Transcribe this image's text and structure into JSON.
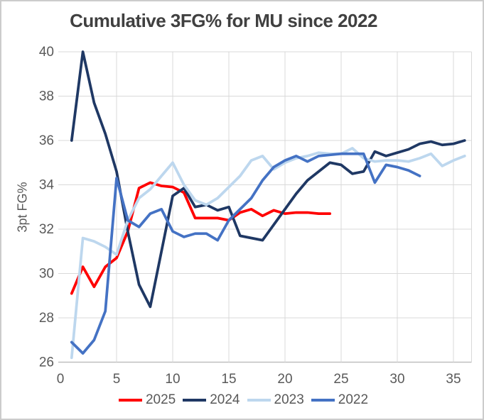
{
  "chart": {
    "title": "Cumulative 3FG% for MU since 2022",
    "y_axis_title": "3pt FG%"
  },
  "chart_data": {
    "type": "line",
    "title": "Cumulative 3FG% for MU since 2022",
    "xlabel": "",
    "ylabel": "3pt FG%",
    "x_start": 1,
    "xlim": [
      0,
      36.6
    ],
    "ylim": [
      26,
      40
    ],
    "x_ticks": [
      0,
      5,
      10,
      15,
      20,
      25,
      30,
      35
    ],
    "y_ticks": [
      26,
      28,
      30,
      32,
      34,
      36,
      38,
      40
    ],
    "grid": "both",
    "legend_position": "bottom",
    "colors": {
      "gridline": "#d9d9d9",
      "axis_line": "#bfbfbf",
      "tick_text": "#595959",
      "title_text": "#404040"
    },
    "series": [
      {
        "name": "2025",
        "color": "#ff0000",
        "values": [
          29.1,
          30.3,
          29.4,
          30.3,
          30.7,
          31.9,
          33.85,
          34.1,
          33.95,
          33.9,
          33.65,
          32.5,
          32.5,
          32.5,
          32.4,
          32.75,
          32.9,
          32.6,
          32.85,
          32.7,
          32.75,
          32.75,
          32.7,
          32.7
        ]
      },
      {
        "name": "2024",
        "color": "#1f3864",
        "values": [
          36.0,
          40.0,
          37.7,
          36.3,
          34.6,
          31.9,
          29.5,
          28.5,
          31.0,
          33.5,
          33.85,
          33.0,
          33.1,
          32.85,
          33.0,
          31.7,
          31.6,
          31.5,
          32.2,
          32.9,
          33.6,
          34.2,
          34.6,
          35.0,
          34.9,
          34.5,
          34.6,
          35.5,
          35.3,
          35.45,
          35.6,
          35.85,
          35.95,
          35.8,
          35.85,
          36.0
        ]
      },
      {
        "name": "2023",
        "color": "#bdd7ee",
        "values": [
          26.2,
          31.6,
          31.45,
          31.2,
          30.85,
          32.4,
          33.4,
          33.8,
          34.4,
          35.0,
          34.0,
          33.3,
          33.1,
          33.4,
          33.9,
          34.4,
          35.1,
          35.3,
          34.7,
          35.0,
          35.2,
          35.3,
          35.45,
          35.4,
          35.4,
          35.65,
          35.2,
          35.05,
          35.1,
          35.1,
          35.05,
          35.2,
          35.4,
          34.85,
          35.1,
          35.3
        ]
      },
      {
        "name": "2022",
        "color": "#4472c4",
        "values": [
          26.9,
          26.4,
          27.0,
          28.3,
          34.3,
          32.4,
          32.1,
          32.7,
          32.9,
          31.9,
          31.65,
          31.8,
          31.8,
          31.5,
          32.4,
          32.9,
          33.4,
          34.2,
          34.8,
          35.1,
          35.3,
          35.05,
          35.3,
          35.35,
          35.4,
          35.4,
          35.4,
          34.1,
          34.9,
          34.8,
          34.65,
          34.4
        ]
      }
    ]
  }
}
